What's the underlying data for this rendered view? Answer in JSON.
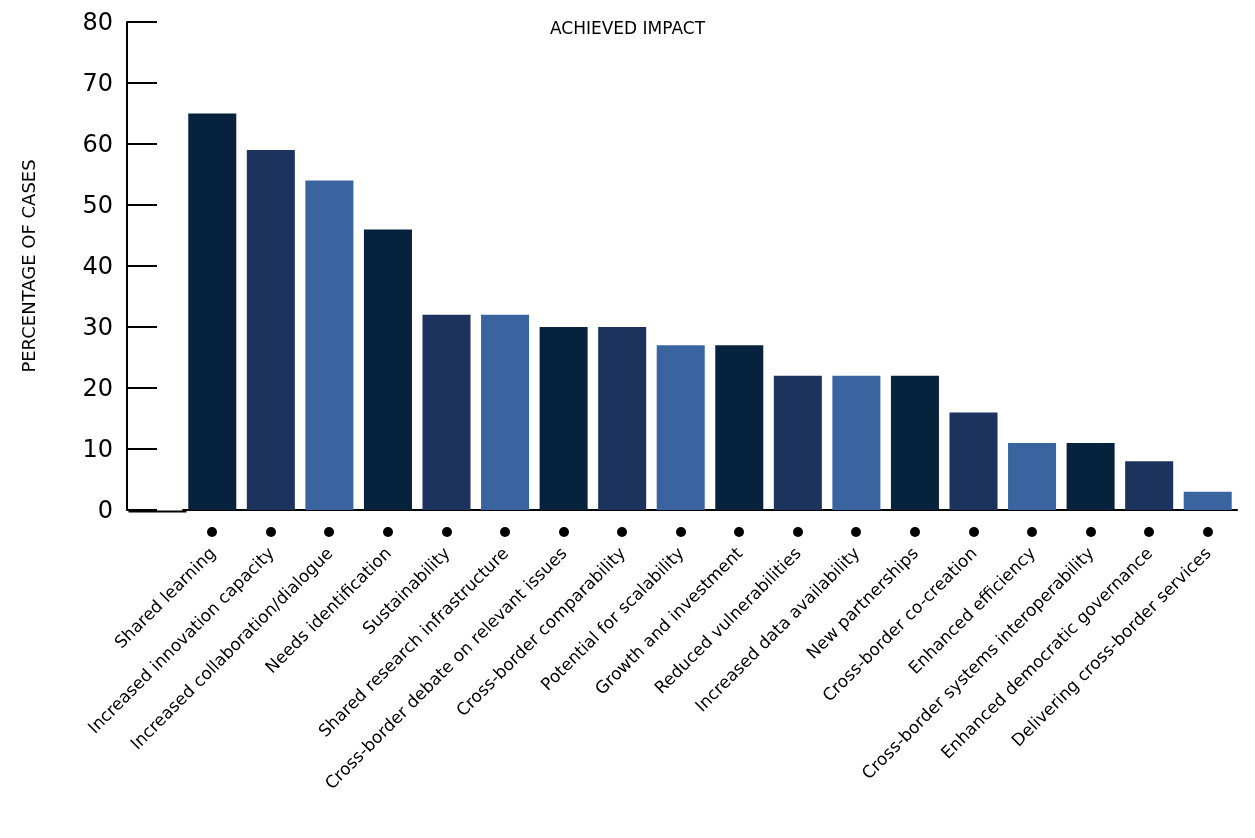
{
  "chart_data": {
    "type": "bar",
    "title": "ACHIEVED IMPACT",
    "ylabel": "PERCENTAGE OF CASES",
    "categories": [
      "Shared learning",
      "Increased innovation capacity",
      "Increased collaboration/dialogue",
      "Needs identification",
      "Sustainability",
      "Shared research infrastructure",
      "Cross-border debate on relevant issues",
      "Cross-border comparability",
      "Potential for scalability",
      "Growth and investment",
      "Reduced vulnerabilities",
      "Increased data availability",
      "New partnerships",
      "Cross-border co-creation",
      "Enhanced efficiency",
      "Cross-border systems interoperability",
      "Enhanced democratic governance",
      "Delivering cross-border services"
    ],
    "values": [
      65,
      59,
      54,
      46,
      32,
      32,
      30,
      30,
      27,
      27,
      22,
      22,
      22,
      16,
      11,
      11,
      8,
      3
    ],
    "colors": [
      "#06223d",
      "#1c335e",
      "#3a64a0",
      "#06223d",
      "#1c335e",
      "#3a64a0",
      "#06223d",
      "#1c335e",
      "#3a64a0",
      "#06223d",
      "#1c335e",
      "#3a64a0",
      "#06223d",
      "#1c335e",
      "#3a64a0",
      "#06223d",
      "#1c335e",
      "#3a64a0"
    ],
    "ylim": [
      0,
      80
    ],
    "yticks": [
      0,
      10,
      20,
      30,
      40,
      50,
      60,
      70,
      80
    ],
    "grid": false
  }
}
